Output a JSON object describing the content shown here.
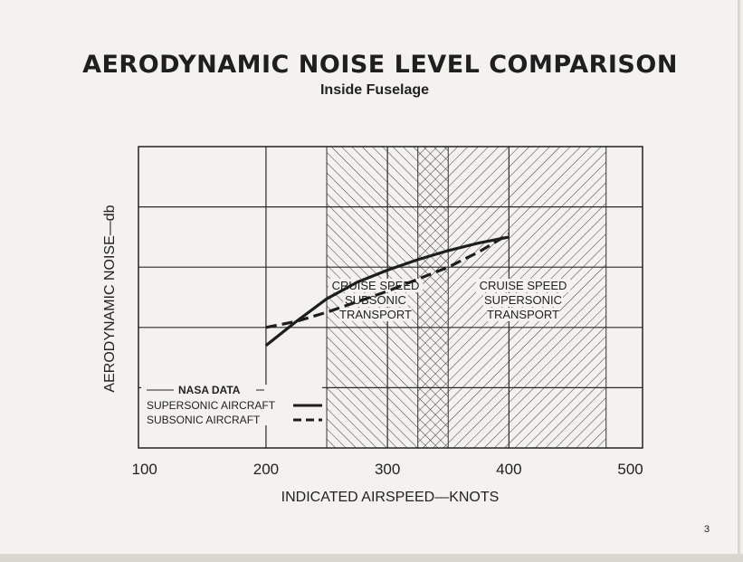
{
  "title": "AERODYNAMIC NOISE LEVEL COMPARISON",
  "subtitle": "Inside Fuselage",
  "page_number": "3",
  "chart_data": {
    "type": "line",
    "xlabel": "INDICATED AIRSPEED—KNOTS",
    "ylabel": "AERODYNAMIC NOISE—db",
    "xlim": [
      100,
      500
    ],
    "x_ticks": [
      "100",
      "200",
      "300",
      "400",
      "500"
    ],
    "y_ticks": [],
    "grid": true,
    "regions": [
      {
        "name": "subsonic_cruise",
        "lines": [
          "CRUISE SPEED",
          "SUBSONIC",
          "TRANSPORT"
        ],
        "x_range": [
          250,
          350
        ]
      },
      {
        "name": "supersonic_cruise",
        "lines": [
          "CRUISE SPEED",
          "SUPERSONIC",
          "TRANSPORT"
        ],
        "x_range": [
          325,
          480
        ]
      }
    ],
    "legend": {
      "title": "NASA DATA",
      "position": "bottom-left",
      "entries": [
        {
          "label": "SUPERSONIC AIRCRAFT",
          "style": "solid"
        },
        {
          "label": "SUBSONIC AIRCRAFT",
          "style": "dashed"
        }
      ]
    },
    "series": [
      {
        "name": "SUPERSONIC AIRCRAFT",
        "style": "solid",
        "x": [
          200,
          225,
          250,
          275,
          300,
          325,
          350,
          375,
          400
        ],
        "y": [
          0.34,
          0.42,
          0.495,
          0.55,
          0.59,
          0.625,
          0.655,
          0.68,
          0.7
        ]
      },
      {
        "name": "SUBSONIC AIRCRAFT",
        "style": "dashed",
        "x": [
          200,
          225,
          250,
          275,
          300,
          325,
          350,
          375,
          400
        ],
        "y": [
          0.4,
          0.42,
          0.45,
          0.485,
          0.52,
          0.56,
          0.6,
          0.65,
          0.71
        ]
      }
    ],
    "colors": {
      "line": "#1e1e1e",
      "grid": "#2a2a2a",
      "hatch": "#3a3a3a",
      "text": "#222222"
    }
  }
}
